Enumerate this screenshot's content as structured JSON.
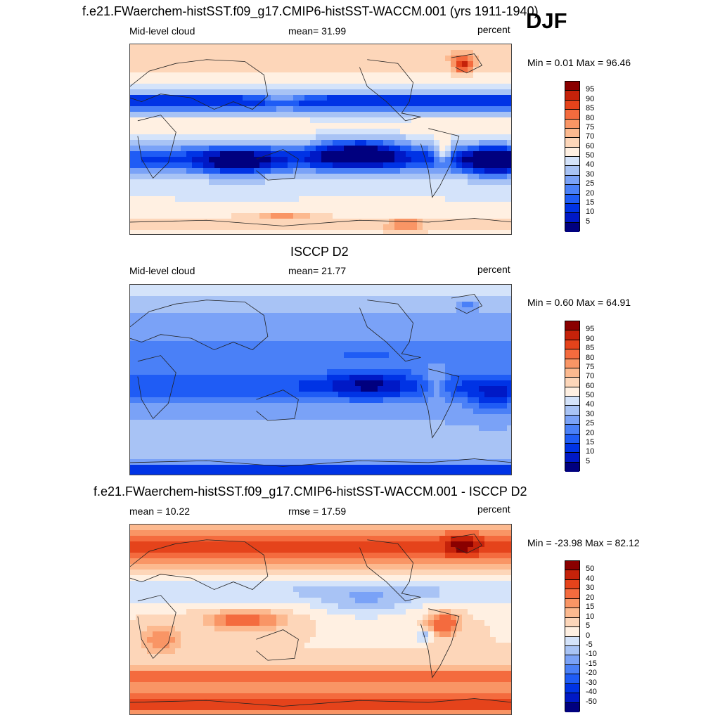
{
  "season": "DJF",
  "units_label": "percent",
  "colors": {
    "abs_scale": [
      "#00007f",
      "#0019c6",
      "#0033e5",
      "#1f5cf5",
      "#4a80f7",
      "#7aa2f7",
      "#a8c3f5",
      "#d4e3fa",
      "#fff0e2",
      "#fdd6b9",
      "#fcb98f",
      "#f99565",
      "#f46b3e",
      "#e5431b",
      "#c5220a",
      "#8a0000"
    ],
    "diff_scale": [
      "#00007f",
      "#0019c6",
      "#0033e5",
      "#1f5cf5",
      "#4a80f7",
      "#7aa2f7",
      "#a8c3f5",
      "#d4e3fa",
      "#fff0e2",
      "#fdd6b9",
      "#fcb98f",
      "#f99565",
      "#f46b3e",
      "#e5431b",
      "#c5220a",
      "#8a0000"
    ]
  },
  "chart_data": [
    {
      "type": "heatmap",
      "title": "f.e21.FWaerchem-histSST.f09_g17.CMIP6-histSST-WACCM.001 (yrs 1911-1940)",
      "left_label": "Mid-level cloud",
      "center_label": "mean=  31.99",
      "right_label": "percent",
      "minmax_label": "Min =   0.01 Max =  96.46",
      "mean": 31.99,
      "min": 0.01,
      "max": 96.46,
      "levels": [
        "95",
        "90",
        "85",
        "80",
        "75",
        "70",
        "60",
        "50",
        "40",
        "30",
        "25",
        "20",
        "15",
        "10",
        "5"
      ]
    },
    {
      "type": "heatmap",
      "title": "ISCCP D2",
      "left_label": "Mid-level cloud",
      "center_label": "mean=  21.77",
      "right_label": "percent",
      "minmax_label": "Min =   0.60 Max =  64.91",
      "mean": 21.77,
      "min": 0.6,
      "max": 64.91,
      "levels": [
        "95",
        "90",
        "85",
        "80",
        "75",
        "70",
        "60",
        "50",
        "40",
        "30",
        "25",
        "20",
        "15",
        "10",
        "5"
      ]
    },
    {
      "type": "heatmap",
      "title": "f.e21.FWaerchem-histSST.f09_g17.CMIP6-histSST-WACCM.001 - ISCCP D2",
      "left_label": "mean =  10.22",
      "center_label": "rmse =  17.59",
      "right_label": "percent",
      "minmax_label": "Min = -23.98 Max =  82.12",
      "mean": 10.22,
      "rmse": 17.59,
      "min": -23.98,
      "max": 82.12,
      "levels": [
        "50",
        "40",
        "30",
        "20",
        "15",
        "10",
        "5",
        "0",
        "-5",
        "-10",
        "-15",
        "-20",
        "-30",
        "-40",
        "-50"
      ]
    }
  ]
}
